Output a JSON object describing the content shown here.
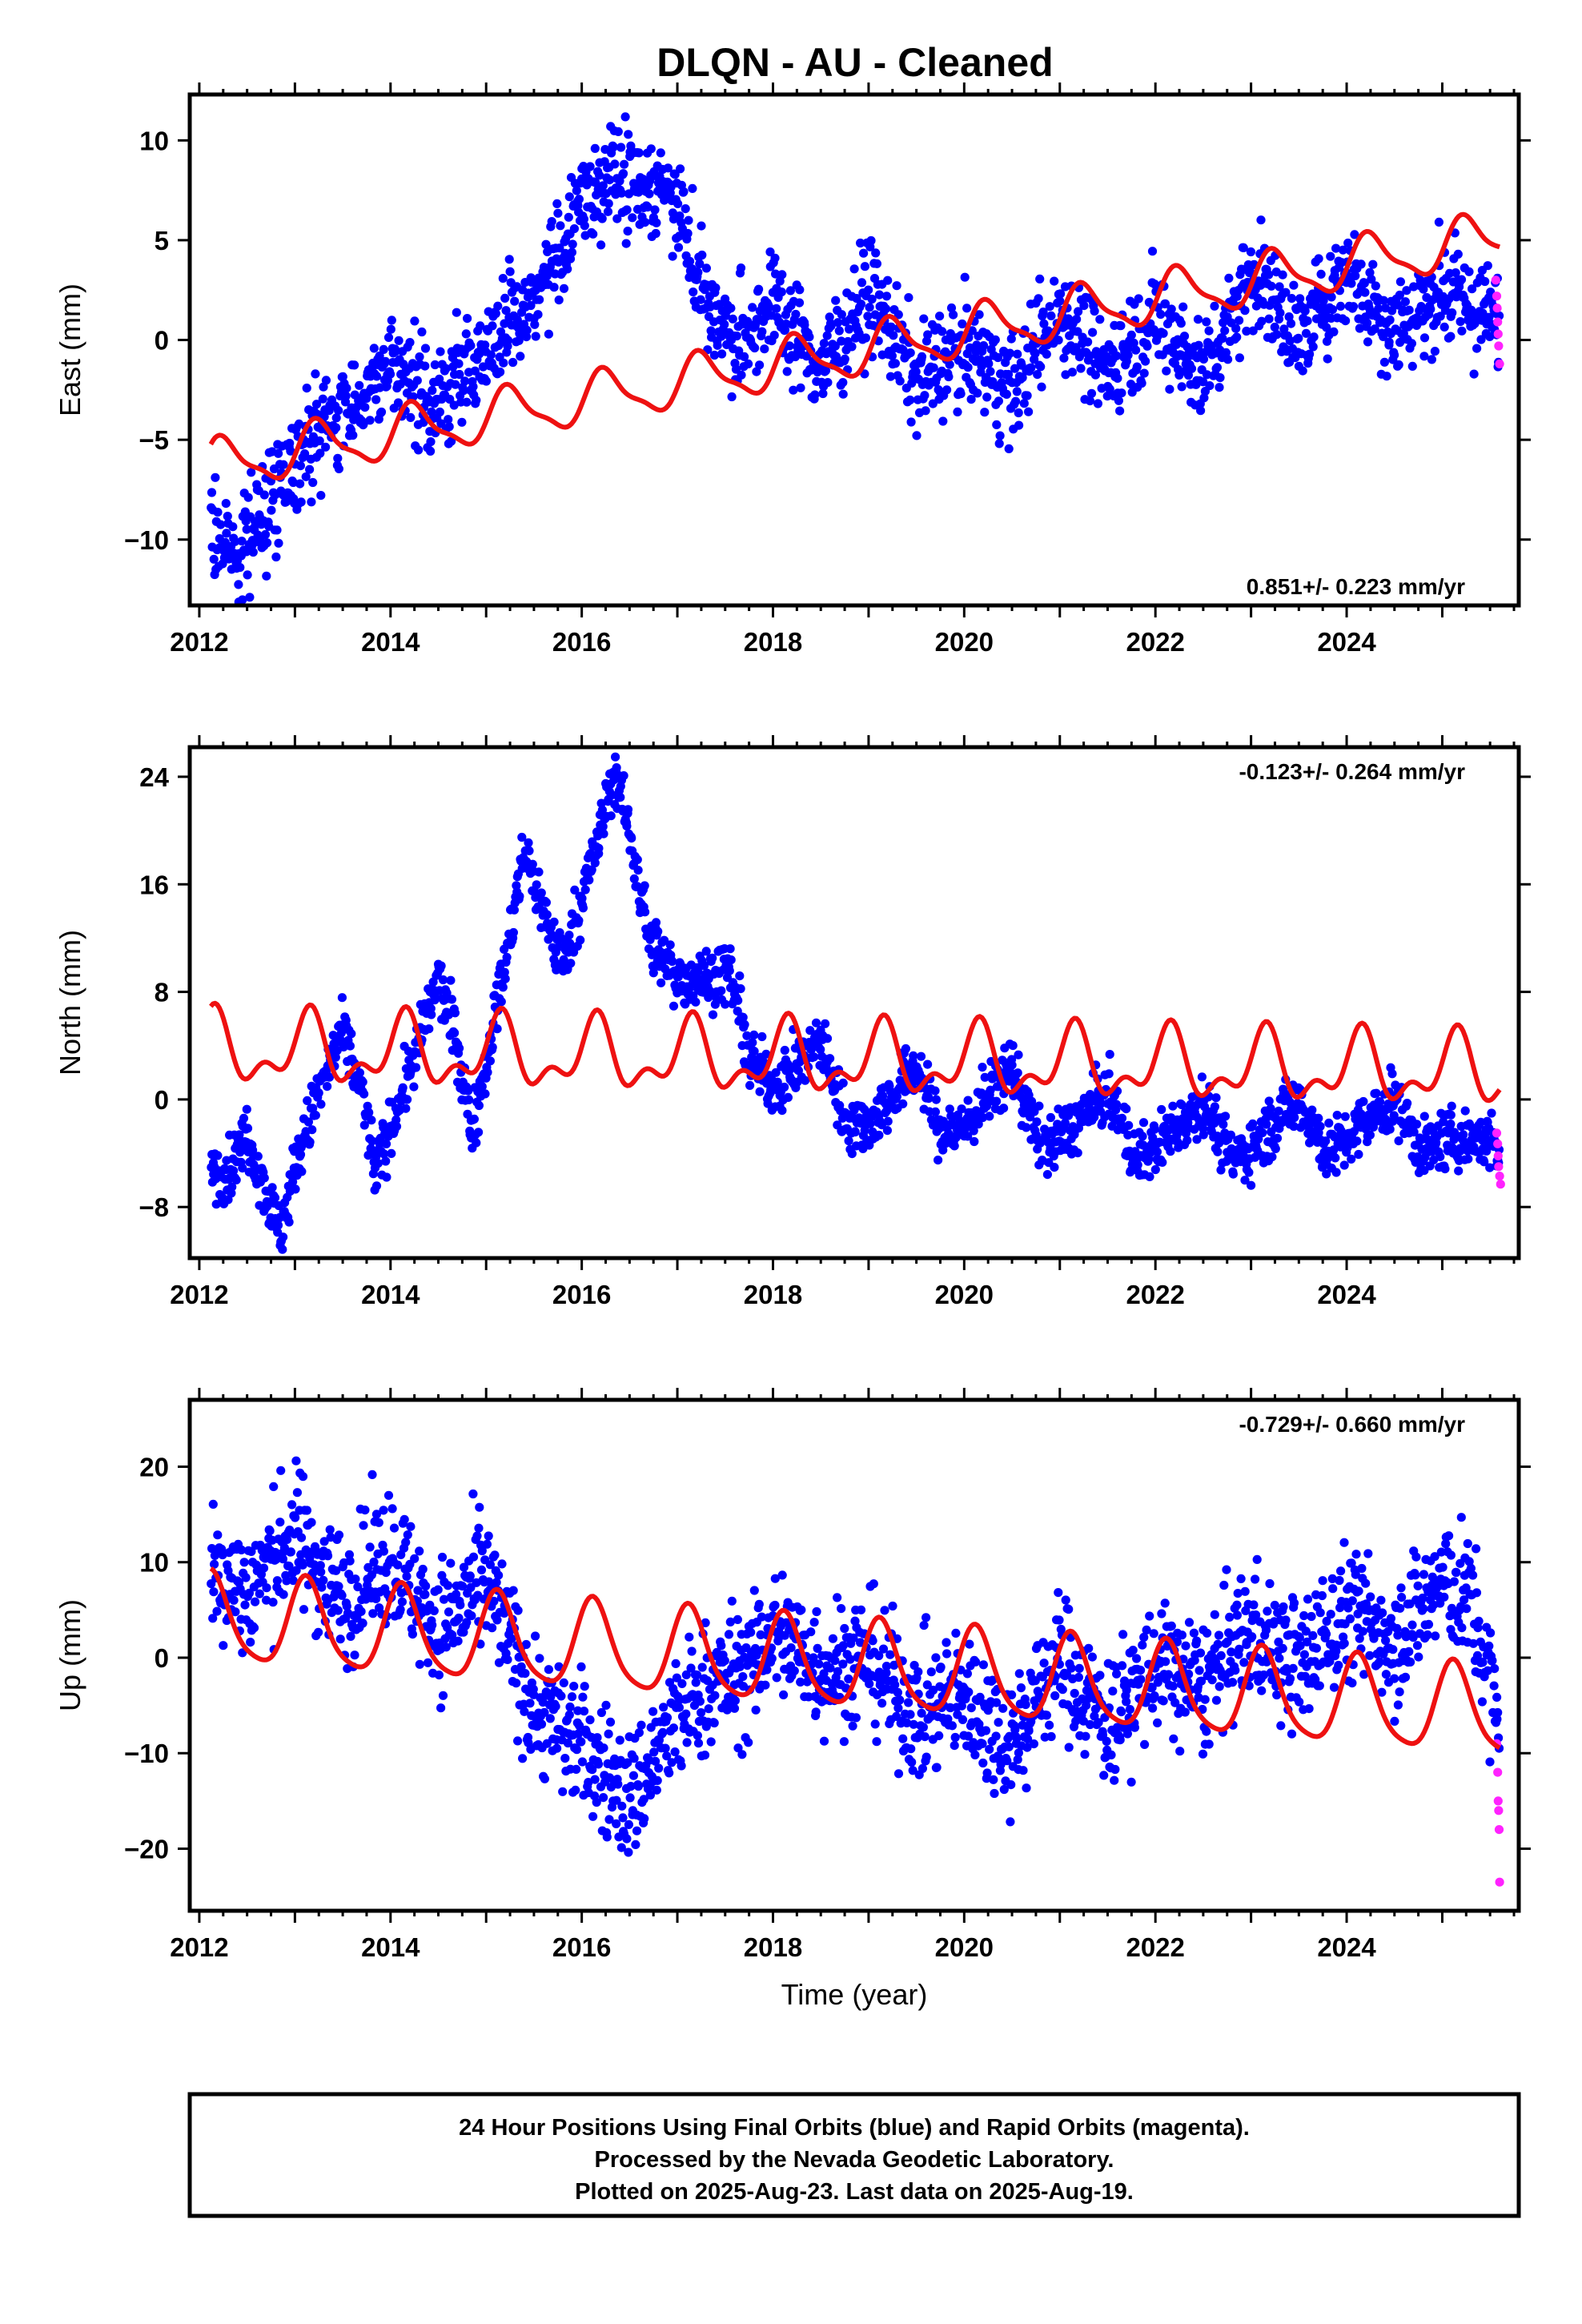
{
  "title": "DLQN  - AU - Cleaned",
  "footer": {
    "line1": "24 Hour Positions Using Final Orbits (blue) and Rapid Orbits (magenta).",
    "line2": "Processed by the Nevada Geodetic Laboratory.",
    "line3": "Plotted on 2025-Aug-23. Last data on 2025-Aug-19."
  },
  "colors": {
    "final_orbits": "#0000ff",
    "rapid_orbits": "#ff22ff",
    "fit": "#ee1111"
  },
  "chart_data": [
    {
      "type": "scatter",
      "ylabel": "East (mm)",
      "xlabel": "",
      "rate_label": "0.851+/- 0.223 mm/yr",
      "rate_position": "bottom-right",
      "xlim": [
        2011.9,
        2025.8
      ],
      "ylim": [
        -13.3,
        12.3
      ],
      "x_ticks": [
        2012,
        2014,
        2016,
        2018,
        2020,
        2022,
        2024
      ],
      "y_ticks": [
        -10,
        -5,
        0,
        5,
        10
      ],
      "grid": false,
      "trend_points": [
        [
          2012.12,
          -9.5
        ],
        [
          2012.4,
          -10.5
        ],
        [
          2012.6,
          -9.2
        ],
        [
          2013.0,
          -6.0
        ],
        [
          2013.5,
          -3.5
        ],
        [
          2014.0,
          -1.5
        ],
        [
          2014.5,
          -3.0
        ],
        [
          2015.0,
          -0.5
        ],
        [
          2015.5,
          2.0
        ],
        [
          2016.0,
          6.5
        ],
        [
          2016.3,
          8.5
        ],
        [
          2016.6,
          7.8
        ],
        [
          2017.0,
          7.2
        ],
        [
          2017.3,
          2.0
        ],
        [
          2017.6,
          -0.5
        ],
        [
          2018.0,
          2.0
        ],
        [
          2018.5,
          -1.5
        ],
        [
          2019.0,
          2.5
        ],
        [
          2019.5,
          -2.0
        ],
        [
          2020.0,
          -0.5
        ],
        [
          2020.5,
          -2.5
        ],
        [
          2021.0,
          1.5
        ],
        [
          2021.5,
          -1.5
        ],
        [
          2022.0,
          1.2
        ],
        [
          2022.5,
          -1.8
        ],
        [
          2023.0,
          3.5
        ],
        [
          2023.5,
          0.0
        ],
        [
          2024.0,
          3.5
        ],
        [
          2024.5,
          0.5
        ],
        [
          2025.0,
          2.5
        ],
        [
          2025.5,
          1.0
        ],
        [
          2025.6,
          1.0
        ]
      ],
      "scatter_spread": 1.3,
      "fit_linear": [
        2018.5,
        -0.9,
        0.851
      ],
      "fit_harmonics": [
        [
          1.2,
          0.0
        ],
        [
          0.3,
          -0.2
        ]
      ],
      "rapid_points": [
        [
          2025.56,
          3.0
        ],
        [
          2025.57,
          2.2
        ],
        [
          2025.575,
          1.6
        ],
        [
          2025.58,
          0.9
        ],
        [
          2025.585,
          0.3
        ],
        [
          2025.59,
          -0.3
        ],
        [
          2025.6,
          -1.2
        ]
      ]
    },
    {
      "type": "scatter",
      "ylabel": "North (mm)",
      "xlabel": "",
      "rate_label": "-0.123+/- 0.264 mm/yr",
      "rate_position": "top-right",
      "xlim": [
        2011.9,
        2025.8
      ],
      "ylim": [
        -11.8,
        26.2
      ],
      "x_ticks": [
        2012,
        2014,
        2016,
        2018,
        2020,
        2022,
        2024
      ],
      "y_ticks": [
        -8,
        0,
        8,
        16,
        24
      ],
      "grid": false,
      "trend_points": [
        [
          2012.12,
          -5.0
        ],
        [
          2012.3,
          -5.5
        ],
        [
          2012.5,
          -2.5
        ],
        [
          2012.75,
          -8.0
        ],
        [
          2012.85,
          -10.0
        ],
        [
          2013.0,
          -5.0
        ],
        [
          2013.25,
          0.5
        ],
        [
          2013.5,
          5.0
        ],
        [
          2013.7,
          0.5
        ],
        [
          2013.85,
          -5.5
        ],
        [
          2014.0,
          -2.0
        ],
        [
          2014.2,
          2.0
        ],
        [
          2014.5,
          9.0
        ],
        [
          2014.7,
          4.0
        ],
        [
          2014.85,
          -2.5
        ],
        [
          2015.0,
          3.0
        ],
        [
          2015.2,
          10.0
        ],
        [
          2015.4,
          18.5
        ],
        [
          2015.6,
          14.0
        ],
        [
          2015.8,
          10.0
        ],
        [
          2016.0,
          15.0
        ],
        [
          2016.2,
          20.0
        ],
        [
          2016.35,
          24.5
        ],
        [
          2016.55,
          18.0
        ],
        [
          2016.7,
          12.0
        ],
        [
          2017.0,
          9.0
        ],
        [
          2017.3,
          9.0
        ],
        [
          2017.55,
          9.5
        ],
        [
          2017.75,
          3.0
        ],
        [
          2018.0,
          1.0
        ],
        [
          2018.2,
          2.0
        ],
        [
          2018.5,
          4.5
        ],
        [
          2018.75,
          -1.5
        ],
        [
          2019.0,
          -2.0
        ],
        [
          2019.5,
          2.5
        ],
        [
          2019.75,
          -2.5
        ],
        [
          2020.0,
          -2.0
        ],
        [
          2020.5,
          2.5
        ],
        [
          2020.8,
          -3.5
        ],
        [
          2021.0,
          -3.0
        ],
        [
          2021.5,
          0.5
        ],
        [
          2021.8,
          -4.5
        ],
        [
          2022.0,
          -3.5
        ],
        [
          2022.5,
          0.0
        ],
        [
          2022.8,
          -4.5
        ],
        [
          2023.0,
          -3.5
        ],
        [
          2023.5,
          0.0
        ],
        [
          2023.8,
          -4.0
        ],
        [
          2024.0,
          -3.0
        ],
        [
          2024.5,
          0.0
        ],
        [
          2024.8,
          -4.0
        ],
        [
          2025.0,
          -3.0
        ],
        [
          2025.5,
          -3.0
        ],
        [
          2025.6,
          -4.0
        ]
      ],
      "scatter_spread": 1.1,
      "fit_linear": [
        2018.5,
        2.9,
        -0.123
      ],
      "fit_harmonics": [
        [
          1.7,
          1.4
        ],
        [
          1.1,
          -0.7
        ]
      ],
      "rapid_points": [
        [
          2025.57,
          -2.5
        ],
        [
          2025.58,
          -3.3
        ],
        [
          2025.585,
          -4.2
        ],
        [
          2025.59,
          -5.0
        ],
        [
          2025.6,
          -5.7
        ],
        [
          2025.61,
          -6.3
        ]
      ]
    },
    {
      "type": "scatter",
      "ylabel": "Up (mm)",
      "xlabel": "Time (year)",
      "rate_label": "-0.729+/- 0.660 mm/yr",
      "rate_position": "top-right",
      "xlim": [
        2011.9,
        2025.8
      ],
      "ylim": [
        -26.5,
        27.0
      ],
      "x_ticks": [
        2012,
        2014,
        2016,
        2018,
        2020,
        2022,
        2024
      ],
      "y_ticks": [
        -20,
        -10,
        0,
        10,
        20
      ],
      "grid": false,
      "trend_points": [
        [
          2012.12,
          9.0
        ],
        [
          2012.5,
          7.0
        ],
        [
          2013.0,
          13.0
        ],
        [
          2013.5,
          6.0
        ],
        [
          2014.0,
          11.0
        ],
        [
          2014.5,
          3.0
        ],
        [
          2015.0,
          8.0
        ],
        [
          2015.5,
          -5.0
        ],
        [
          2016.0,
          -9.0
        ],
        [
          2016.5,
          -15.0
        ],
        [
          2016.9,
          -8.0
        ],
        [
          2017.3,
          -3.0
        ],
        [
          2017.8,
          -1.0
        ],
        [
          2018.0,
          3.0
        ],
        [
          2018.5,
          -1.0
        ],
        [
          2019.0,
          0.0
        ],
        [
          2019.5,
          -6.0
        ],
        [
          2020.0,
          -4.0
        ],
        [
          2020.5,
          -9.0
        ],
        [
          2021.0,
          0.0
        ],
        [
          2021.5,
          -7.0
        ],
        [
          2022.0,
          -1.0
        ],
        [
          2022.5,
          -3.0
        ],
        [
          2023.0,
          3.0
        ],
        [
          2023.5,
          -1.0
        ],
        [
          2024.0,
          5.0
        ],
        [
          2024.5,
          2.0
        ],
        [
          2025.0,
          8.0
        ],
        [
          2025.3,
          6.0
        ],
        [
          2025.5,
          -3.0
        ],
        [
          2025.6,
          -6.0
        ]
      ],
      "scatter_spread": 3.5,
      "fit_linear": [
        2018.5,
        -0.65,
        -0.729
      ],
      "fit_harmonics": [
        [
          3.2,
          3.2
        ],
        [
          0.8,
          0.3
        ]
      ],
      "rapid_points": [
        [
          2025.57,
          -9.0
        ],
        [
          2025.58,
          -12.0
        ],
        [
          2025.585,
          -15.0
        ],
        [
          2025.59,
          -16.0
        ],
        [
          2025.595,
          -18.0
        ],
        [
          2025.6,
          -23.5
        ]
      ]
    }
  ]
}
